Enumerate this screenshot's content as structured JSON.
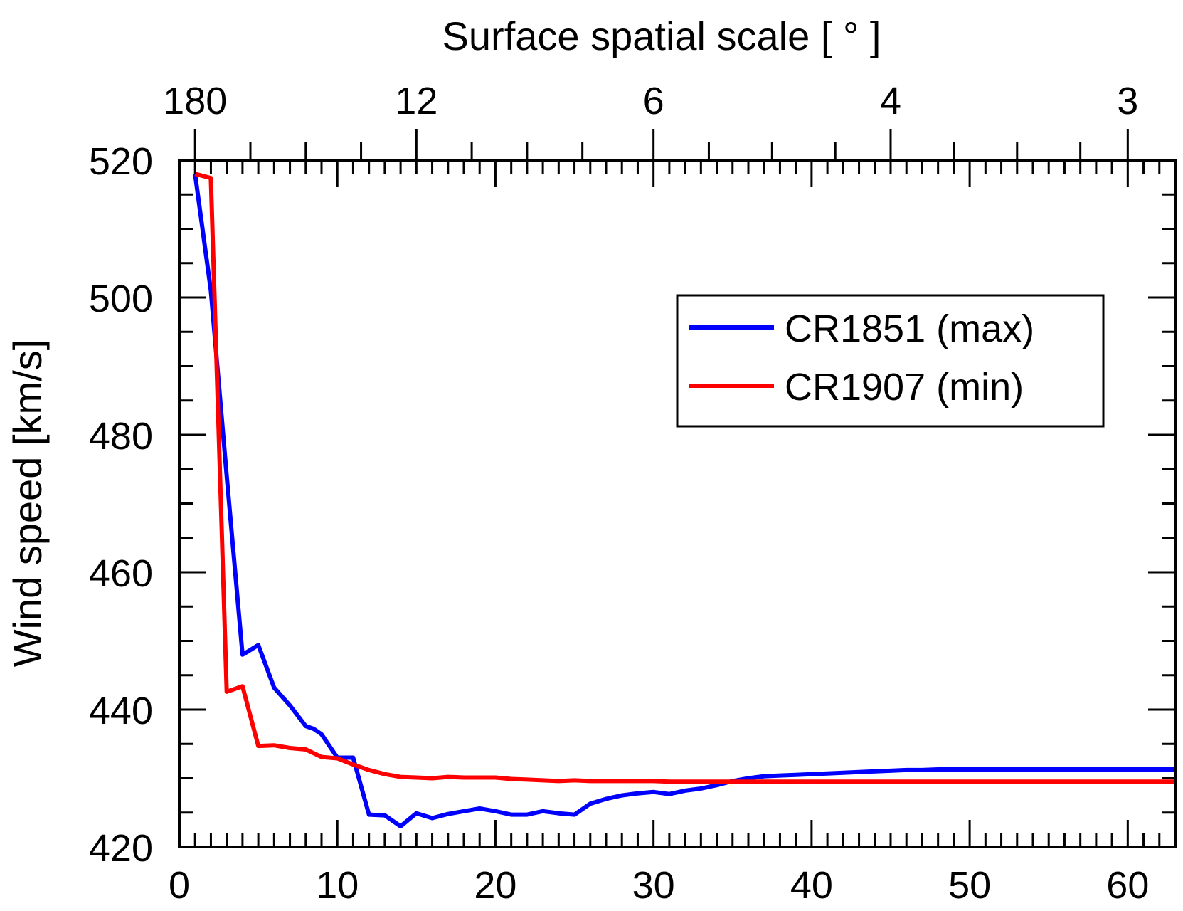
{
  "chart_data": {
    "type": "line",
    "title": "",
    "xlabel": "",
    "ylabel": "Wind speed [km/s]",
    "top_xlabel": "Surface spatial scale [ ° ]",
    "xlim": [
      0,
      63
    ],
    "ylim": [
      420,
      520
    ],
    "x_ticks": [
      0,
      10,
      20,
      30,
      40,
      50,
      60
    ],
    "x_tick_labels": [
      "0",
      "10",
      "20",
      "30",
      "40",
      "50",
      "60"
    ],
    "x_minor_step": 1,
    "y_ticks": [
      420,
      440,
      460,
      480,
      500,
      520
    ],
    "y_tick_labels": [
      "420",
      "440",
      "460",
      "480",
      "500",
      "520"
    ],
    "y_minor_step": 5,
    "top_ticks": [
      {
        "label": "180",
        "x": 1
      },
      {
        "label": "12",
        "x": 15
      },
      {
        "label": "6",
        "x": 30
      },
      {
        "label": "4",
        "x": 45
      },
      {
        "label": "3",
        "x": 60
      }
    ],
    "top_minor_ticks": [
      4.5,
      8,
      11.5,
      18.5,
      22,
      25.5,
      33.5,
      37.5,
      41.5,
      49,
      53,
      57
    ],
    "legend_position": "upper-right",
    "series": [
      {
        "name": "CR1851 (max)",
        "color": "#0000ff",
        "x": [
          1,
          2,
          3,
          4,
          4.3,
          5,
          6,
          7,
          8,
          8.5,
          9,
          10,
          11,
          12,
          13,
          14,
          15,
          16,
          17,
          18,
          19,
          20,
          21,
          22,
          23,
          24,
          25,
          26,
          27,
          28,
          29,
          30,
          31,
          32,
          33,
          34,
          35,
          36,
          37,
          38,
          39,
          40,
          41,
          42,
          43,
          44,
          45,
          46,
          47,
          48,
          49,
          50,
          51,
          52,
          53,
          54,
          55,
          56,
          57,
          58,
          59,
          60,
          61,
          62,
          63
        ],
        "y": [
          518.0,
          501.0,
          474.0,
          448.0,
          448.4,
          449.4,
          443.2,
          440.6,
          437.6,
          437.2,
          436.4,
          433.0,
          433.0,
          424.7,
          424.6,
          423.0,
          424.9,
          424.2,
          424.8,
          425.2,
          425.6,
          425.2,
          424.7,
          424.7,
          425.2,
          424.9,
          424.7,
          426.3,
          427.0,
          427.5,
          427.8,
          428.0,
          427.7,
          428.2,
          428.5,
          429.0,
          429.6,
          430.0,
          430.3,
          430.4,
          430.5,
          430.6,
          430.7,
          430.8,
          430.9,
          431.0,
          431.1,
          431.2,
          431.2,
          431.3,
          431.3,
          431.3,
          431.3,
          431.3,
          431.3,
          431.3,
          431.3,
          431.3,
          431.3,
          431.3,
          431.3,
          431.3,
          431.3,
          431.3,
          431.3
        ]
      },
      {
        "name": "CR1907 (min)",
        "color": "#ff0000",
        "x": [
          1,
          2,
          3,
          4,
          5,
          6,
          7,
          8,
          9,
          10,
          11,
          12,
          13,
          14,
          15,
          16,
          17,
          18,
          19,
          20,
          21,
          22,
          23,
          24,
          25,
          26,
          27,
          28,
          29,
          30,
          31,
          32,
          33,
          34,
          35,
          36,
          37,
          38,
          39,
          40,
          41,
          42,
          43,
          44,
          45,
          46,
          47,
          48,
          49,
          50,
          51,
          52,
          53,
          54,
          55,
          56,
          57,
          58,
          59,
          60,
          61,
          62,
          63
        ],
        "y": [
          518.0,
          517.4,
          442.6,
          443.4,
          434.7,
          434.8,
          434.4,
          434.2,
          433.1,
          432.9,
          432.0,
          431.2,
          430.6,
          430.2,
          430.1,
          430.0,
          430.2,
          430.1,
          430.1,
          430.1,
          429.9,
          429.8,
          429.7,
          429.6,
          429.7,
          429.6,
          429.6,
          429.6,
          429.6,
          429.6,
          429.5,
          429.5,
          429.5,
          429.5,
          429.5,
          429.5,
          429.5,
          429.5,
          429.5,
          429.5,
          429.5,
          429.5,
          429.5,
          429.5,
          429.5,
          429.5,
          429.5,
          429.5,
          429.5,
          429.5,
          429.5,
          429.5,
          429.5,
          429.5,
          429.5,
          429.5,
          429.5,
          429.5,
          429.5,
          429.5,
          429.5,
          429.5,
          429.5
        ]
      }
    ]
  }
}
